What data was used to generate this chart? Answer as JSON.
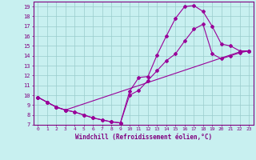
{
  "xlabel": "Windchill (Refroidissement éolien,°C)",
  "xlim": [
    -0.5,
    23.5
  ],
  "ylim": [
    7,
    19.5
  ],
  "xticks": [
    0,
    1,
    2,
    3,
    4,
    5,
    6,
    7,
    8,
    9,
    10,
    11,
    12,
    13,
    14,
    15,
    16,
    17,
    18,
    19,
    20,
    21,
    22,
    23
  ],
  "yticks": [
    7,
    8,
    9,
    10,
    11,
    12,
    13,
    14,
    15,
    16,
    17,
    18,
    19
  ],
  "background_color": "#c8f0f0",
  "line_color": "#990099",
  "grid_color": "#99cccc",
  "line1_x": [
    0,
    1,
    2,
    3,
    4,
    5,
    6,
    7,
    8,
    9,
    10,
    11,
    12,
    13,
    14,
    15,
    16,
    17,
    18,
    19,
    20,
    21,
    22,
    23
  ],
  "line1_y": [
    9.8,
    9.3,
    8.8,
    8.5,
    8.3,
    8.0,
    7.7,
    7.5,
    7.3,
    7.2,
    10.4,
    11.8,
    11.9,
    14.1,
    16.0,
    17.8,
    19.0,
    19.1,
    18.5,
    17.0,
    15.2,
    15.0,
    14.5,
    14.5
  ],
  "line2_x": [
    0,
    1,
    2,
    3,
    4,
    5,
    6,
    7,
    8,
    9,
    10,
    11,
    12,
    13,
    14,
    15,
    16,
    17,
    18,
    19,
    20,
    21,
    22,
    23
  ],
  "line2_y": [
    9.8,
    9.3,
    8.8,
    8.5,
    8.3,
    8.0,
    7.7,
    7.5,
    7.3,
    7.2,
    10.0,
    10.5,
    11.5,
    12.5,
    13.5,
    14.2,
    15.5,
    16.7,
    17.2,
    14.2,
    13.7,
    14.0,
    14.3,
    14.5
  ],
  "line3_x": [
    0,
    1,
    2,
    3,
    22,
    23
  ],
  "line3_y": [
    9.8,
    9.3,
    8.8,
    8.5,
    14.4,
    14.5
  ]
}
